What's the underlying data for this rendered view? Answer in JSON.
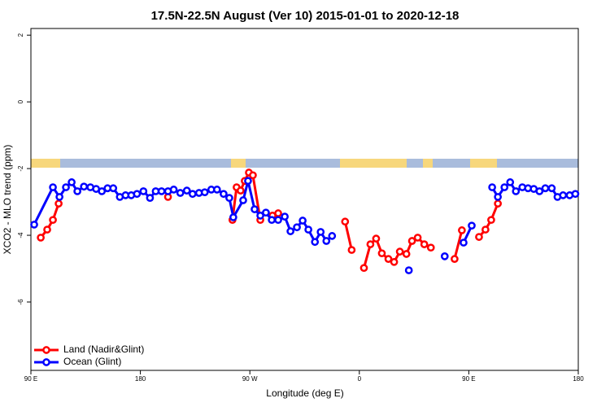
{
  "chart_data": {
    "type": "line",
    "title": "17.5N-22.5N August (Ver 10)   2015-01-01 to 2020-12-18",
    "x_label": "Longitude (deg E)",
    "y_label": "XCO2 - MLO trend (ppm)",
    "xlim": [
      90,
      540
    ],
    "xticks": [
      {
        "value": 90,
        "label": "90 E"
      },
      180,
      {
        "value": 270,
        "label": "90 W"
      },
      {
        "value": 360,
        "label": "0"
      },
      {
        "value": 450,
        "label": "90 E"
      },
      {
        "value": 540,
        "label": "180"
      }
    ],
    "ylim": [
      -8.05,
      2.2
    ],
    "yticks": [
      2,
      0,
      -2,
      -4,
      -6
    ],
    "legend": "bottom-left",
    "series": [
      {
        "name": "Land (Nadir&Glint)",
        "color": "#ff0000",
        "x": [
          98.1,
          103.4,
          108.1,
          112.8,
          null,
          202.7,
          null,
          255.7,
          259.1,
          262.4,
          265.8,
          269.2,
          272.5,
          278.6,
          null,
          288.6,
          293.3,
          null,
          348.3,
          353.7,
          null,
          363.8,
          369.1,
          373.8,
          378.5,
          383.9,
          388.6,
          393.3,
          398.7,
          403.3,
          408.0,
          413.4,
          418.8,
          null,
          438.3,
          444.3,
          null,
          458.4,
          463.7,
          468.4,
          473.9
        ],
        "values": [
          -4.07,
          -3.83,
          -3.54,
          -3.05,
          null,
          -2.85,
          null,
          -3.54,
          -2.56,
          -2.66,
          -2.37,
          -2.12,
          -2.2,
          -3.54,
          null,
          -3.41,
          -3.34,
          null,
          -3.59,
          -4.44,
          null,
          -4.98,
          -4.27,
          -4.1,
          -4.54,
          -4.71,
          -4.8,
          -4.49,
          -4.56,
          -4.17,
          -4.07,
          -4.27,
          -4.37,
          null,
          -4.71,
          -3.85,
          null,
          -4.05,
          -3.83,
          -3.54,
          -3.05
        ]
      },
      {
        "name": "Ocean (Glint)",
        "color": "#0000ff",
        "x": [
          92.7,
          108.1,
          113.5,
          118.8,
          123.5,
          128.2,
          133.6,
          138.9,
          143.6,
          148.3,
          153.0,
          157.7,
          163.1,
          167.8,
          172.5,
          177.2,
          182.5,
          187.9,
          192.6,
          197.4,
          202.7,
          207.4,
          212.8,
          218.2,
          222.9,
          228.2,
          232.9,
          238.3,
          243.0,
          248.4,
          253.1,
          256.4,
          264.5,
          268.5,
          273.9,
          278.6,
          283.2,
          288.0,
          293.3,
          298.7,
          303.4,
          308.7,
          313.4,
          318.1,
          323.5,
          328.2,
          332.9,
          337.6,
          null,
          400.7,
          null,
          430.2,
          null,
          445.7,
          452.4,
          null,
          469.2,
          473.9,
          479.3,
          484.0,
          488.7,
          494.0,
          498.7,
          503.4,
          508.1,
          512.9,
          518.2,
          522.9,
          527.5,
          532.9,
          537.6
        ],
        "values": [
          -3.68,
          -2.56,
          -2.85,
          -2.56,
          -2.41,
          -2.68,
          -2.54,
          -2.56,
          -2.61,
          -2.68,
          -2.59,
          -2.59,
          -2.85,
          -2.8,
          -2.8,
          -2.76,
          -2.68,
          -2.88,
          -2.68,
          -2.68,
          -2.68,
          -2.63,
          -2.73,
          -2.66,
          -2.76,
          -2.73,
          -2.71,
          -2.63,
          -2.63,
          -2.76,
          -2.88,
          -3.46,
          -2.95,
          -2.37,
          -3.22,
          -3.41,
          -3.32,
          -3.54,
          -3.54,
          -3.44,
          -3.88,
          -3.76,
          -3.56,
          -3.83,
          -4.2,
          -3.9,
          -4.17,
          -4.02,
          null,
          -5.05,
          null,
          -4.63,
          null,
          -4.22,
          -3.71,
          null,
          -2.56,
          -2.85,
          -2.56,
          -2.41,
          -2.68,
          -2.56,
          -2.59,
          -2.61,
          -2.68,
          -2.59,
          -2.59,
          -2.85,
          -2.8,
          -2.8,
          -2.76
        ]
      }
    ]
  }
}
